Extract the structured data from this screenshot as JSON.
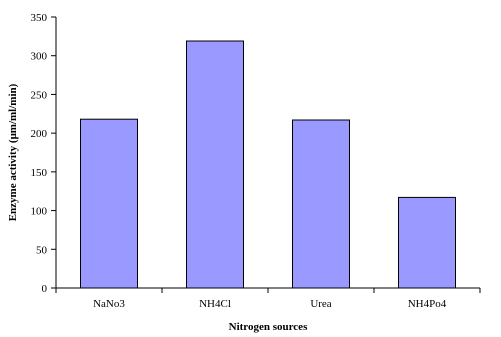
{
  "chart_data": {
    "type": "bar",
    "title": "",
    "xlabel": "Nitrogen sources",
    "ylabel": "Enzyme activity (μm/ml/min)",
    "categories": [
      "NaNo3",
      "NH4Cl",
      "Urea",
      "NH4Po4"
    ],
    "values": [
      218,
      319,
      217,
      117
    ],
    "ylim": [
      0,
      350
    ],
    "yticks": [
      0,
      50,
      100,
      150,
      200,
      250,
      300,
      350
    ],
    "grid": false,
    "legend": "none",
    "bar_color": "#9999ff",
    "bar_edge_color": "#000000"
  }
}
